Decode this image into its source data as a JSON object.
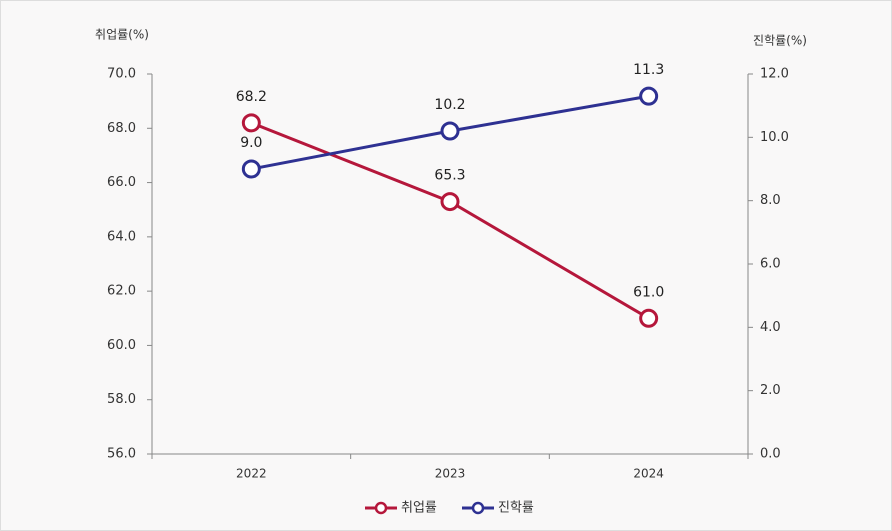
{
  "chart_data": {
    "type": "line",
    "y_label": "취업률(%)",
    "y2_label": "진학률(%)",
    "categories": [
      "2022",
      "2023",
      "2024"
    ],
    "series": [
      {
        "name": "취업률",
        "color": "#b5173b",
        "values": [
          68.2,
          65.3,
          61.0
        ],
        "value_labels": [
          "68.2",
          "65.3",
          "61.0"
        ]
      },
      {
        "name": "진학률",
        "color": "#2e3192",
        "axis": "y2",
        "values": [
          9.0,
          10.2,
          11.3
        ],
        "value_labels": [
          "9.0",
          "10.2",
          "11.3"
        ]
      }
    ],
    "ylim": [
      56,
      70
    ],
    "yticks": [
      {
        "value": 56,
        "label": "56.0"
      },
      {
        "value": 58,
        "label": "58.0"
      },
      {
        "value": 60,
        "label": "60.0"
      },
      {
        "value": 62,
        "label": "62.0"
      },
      {
        "value": 64,
        "label": "64.0"
      },
      {
        "value": 66,
        "label": "66.0"
      },
      {
        "value": 68,
        "label": "68.0"
      },
      {
        "value": 70,
        "label": "70.0"
      }
    ],
    "y2lim": [
      0,
      12
    ],
    "y2ticks": [
      {
        "value": 0,
        "label": "0.0"
      },
      {
        "value": 2,
        "label": "2.0"
      },
      {
        "value": 4,
        "label": "4.0"
      },
      {
        "value": 6,
        "label": "6.0"
      },
      {
        "value": 8,
        "label": "8.0"
      },
      {
        "value": 10,
        "label": "10.0"
      },
      {
        "value": 12,
        "label": "12.0"
      }
    ],
    "legend": "bottom"
  }
}
